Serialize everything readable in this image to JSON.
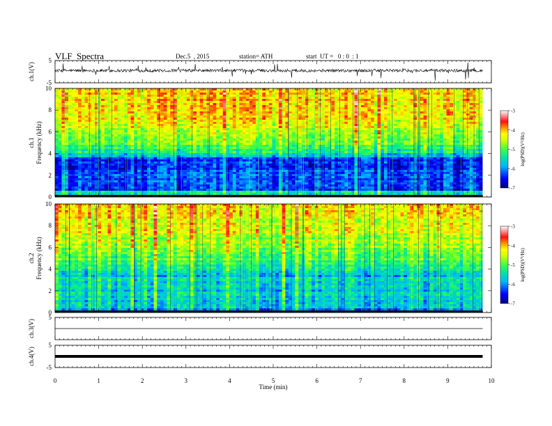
{
  "header": {
    "title": "VLF  Spectra",
    "date": "Dec.5  , 2015",
    "station": "station= ATH",
    "start_ut": "start  UT =   0 : 0  : 1"
  },
  "colors": {
    "spectrum_scale": [
      "#0000a0",
      "#0000ff",
      "#00c8ff",
      "#00e0a0",
      "#40ff40",
      "#c8ff00",
      "#ffff00",
      "#ff8000",
      "#ff0000",
      "#ffffff"
    ]
  },
  "chart_data": [
    {
      "type": "line",
      "panel": "ch1-waveform",
      "ylabel": "ch.1(V)",
      "ylim": [
        -5,
        5
      ],
      "yticks": [
        "5",
        "-5"
      ],
      "xlim": [
        0,
        10
      ],
      "x_extent_min": 9.8,
      "baseline": 0.5
    },
    {
      "type": "heatmap",
      "panel": "ch1-spectrogram",
      "ylabel": "ch.1\nFrequency  (kHz)",
      "ylabel_lines": [
        "ch.1",
        "Frequency  (kHz)"
      ],
      "ylim": [
        0,
        10
      ],
      "yticks": [
        "0",
        "2",
        "4",
        "6",
        "8",
        "10"
      ],
      "xlim": [
        0,
        10
      ],
      "colorbar": {
        "label": "log(PSD)(V²/Hz)",
        "range": [
          -7,
          -3
        ],
        "ticks": [
          "-3",
          "-4",
          "-5",
          "-6",
          "-7"
        ]
      }
    },
    {
      "type": "heatmap",
      "panel": "ch2-spectrogram",
      "ylabel_lines": [
        "ch.2",
        "Frequency  (kHz)"
      ],
      "ylim": [
        0,
        10
      ],
      "yticks": [
        "0",
        "2",
        "4",
        "6",
        "8",
        "10"
      ],
      "xlim": [
        0,
        10
      ],
      "colorbar": {
        "label": "log(PSD)(V²/Hz)",
        "range": [
          -7,
          -3
        ],
        "ticks": [
          "-3",
          "-4",
          "-5",
          "-6",
          "-7"
        ]
      }
    },
    {
      "type": "line",
      "panel": "ch3-waveform",
      "ylabel": "ch.3(V)",
      "ylim": [
        -5,
        5
      ],
      "yticks": [
        "5"
      ],
      "xlim": [
        0,
        10
      ],
      "baseline": 0
    },
    {
      "type": "line",
      "panel": "ch4-waveform",
      "ylabel": "ch.4(V)",
      "ylim": [
        -5,
        5
      ],
      "yticks": [
        "5",
        "-5"
      ],
      "xlim": [
        0,
        10
      ],
      "baseline": 0
    }
  ],
  "xaxis": {
    "label": "Time  (min)",
    "ticks": [
      "0",
      "1",
      "2",
      "3",
      "4",
      "5",
      "6",
      "7",
      "8",
      "9",
      "10"
    ]
  }
}
